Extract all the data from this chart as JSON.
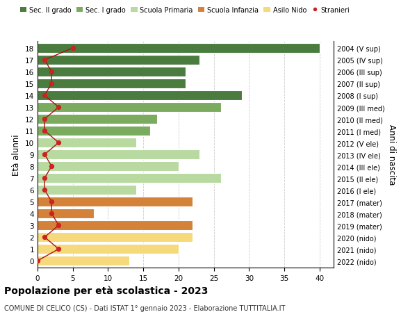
{
  "ages": [
    18,
    17,
    16,
    15,
    14,
    13,
    12,
    11,
    10,
    9,
    8,
    7,
    6,
    5,
    4,
    3,
    2,
    1,
    0
  ],
  "bar_values": [
    40,
    23,
    21,
    21,
    29,
    26,
    17,
    16,
    14,
    23,
    20,
    26,
    14,
    22,
    8,
    22,
    22,
    20,
    13
  ],
  "bar_colors": [
    "#4a7c3f",
    "#4a7c3f",
    "#4a7c3f",
    "#4a7c3f",
    "#4a7c3f",
    "#7aab5e",
    "#7aab5e",
    "#7aab5e",
    "#b8d9a0",
    "#b8d9a0",
    "#b8d9a0",
    "#b8d9a0",
    "#b8d9a0",
    "#d4813a",
    "#d4813a",
    "#d4813a",
    "#f5d97a",
    "#f5d97a",
    "#f5d97a"
  ],
  "stranieri_values": [
    5,
    1,
    2,
    2,
    1,
    3,
    1,
    1,
    3,
    1,
    2,
    1,
    1,
    2,
    2,
    3,
    1,
    3,
    0
  ],
  "right_labels": [
    "2004 (V sup)",
    "2005 (IV sup)",
    "2006 (III sup)",
    "2007 (II sup)",
    "2008 (I sup)",
    "2009 (III med)",
    "2010 (II med)",
    "2011 (I med)",
    "2012 (V ele)",
    "2013 (IV ele)",
    "2014 (III ele)",
    "2015 (II ele)",
    "2016 (I ele)",
    "2017 (mater)",
    "2018 (mater)",
    "2019 (mater)",
    "2020 (nido)",
    "2021 (nido)",
    "2022 (nido)"
  ],
  "legend_labels": [
    "Sec. II grado",
    "Sec. I grado",
    "Scuola Primaria",
    "Scuola Infanzia",
    "Asilo Nido",
    "Stranieri"
  ],
  "legend_colors": [
    "#4a7c3f",
    "#7aab5e",
    "#b8d9a0",
    "#d4813a",
    "#f5d97a",
    "#cc2222"
  ],
  "ylabel": "Età alunni",
  "right_ylabel": "Anni di nascita",
  "title": "Popolazione per età scolastica - 2023",
  "subtitle": "COMUNE DI CELICO (CS) - Dati ISTAT 1° gennaio 2023 - Elaborazione TUTTITALIA.IT",
  "xlim": [
    0,
    42
  ],
  "xticks": [
    0,
    5,
    10,
    15,
    20,
    25,
    30,
    35,
    40
  ],
  "background_color": "#ffffff",
  "grid_color": "#cccccc",
  "bar_edge_color": "#ffffff",
  "stranieri_color": "#cc2222",
  "stranieri_line_color": "#aa1111"
}
